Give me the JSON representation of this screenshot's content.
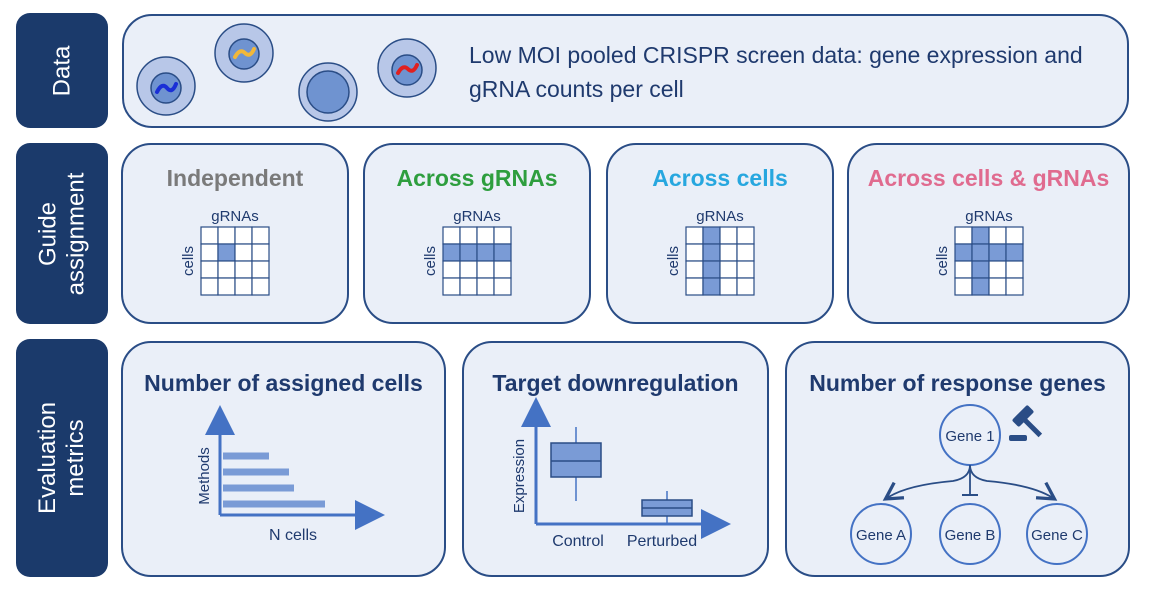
{
  "rows": {
    "data_label": "Data",
    "guide_label_1": "Guide",
    "guide_label_2": "assignment",
    "eval_label_1": "Evaluation",
    "eval_label_2": "metrics"
  },
  "data_panel": {
    "text": "Low MOI pooled CRISPR screen data: gene expression and gRNA counts per cell"
  },
  "guide_panels": [
    {
      "title": "Independent",
      "color": "#7a7a7a",
      "gRNAs_label": "gRNAs",
      "cells_label": "cells",
      "pattern": "single"
    },
    {
      "title": "Across gRNAs",
      "color": "#2e9e3e",
      "gRNAs_label": "gRNAs",
      "cells_label": "cells",
      "pattern": "row"
    },
    {
      "title": "Across cells",
      "color": "#27a7df",
      "gRNAs_label": "gRNAs",
      "cells_label": "cells",
      "pattern": "column"
    },
    {
      "title": "Across cells & gRNAs",
      "color": "#e06b8f",
      "gRNAs_label": "gRNAs",
      "cells_label": "cells",
      "pattern": "cross"
    }
  ],
  "eval_panels": {
    "assigned": {
      "title": "Number of assigned cells",
      "ylabel": "Methods",
      "xlabel": "N cells",
      "bar_levels": [
        0.45,
        0.65,
        0.7,
        1.0
      ]
    },
    "downreg": {
      "title": "Target downregulation",
      "ylabel": "Expression",
      "cat1": "Control",
      "cat2": "Perturbed"
    },
    "response": {
      "title": "Number of response genes",
      "gene1": "Gene 1",
      "geneA": "Gene A",
      "geneB": "Gene B",
      "geneC": "Gene C"
    }
  },
  "colors": {
    "navy": "#1b3a6b",
    "panel_bg": "#eaeff8",
    "accent_blue": "#4472c4",
    "cell_fill": "#7a9bd6"
  }
}
